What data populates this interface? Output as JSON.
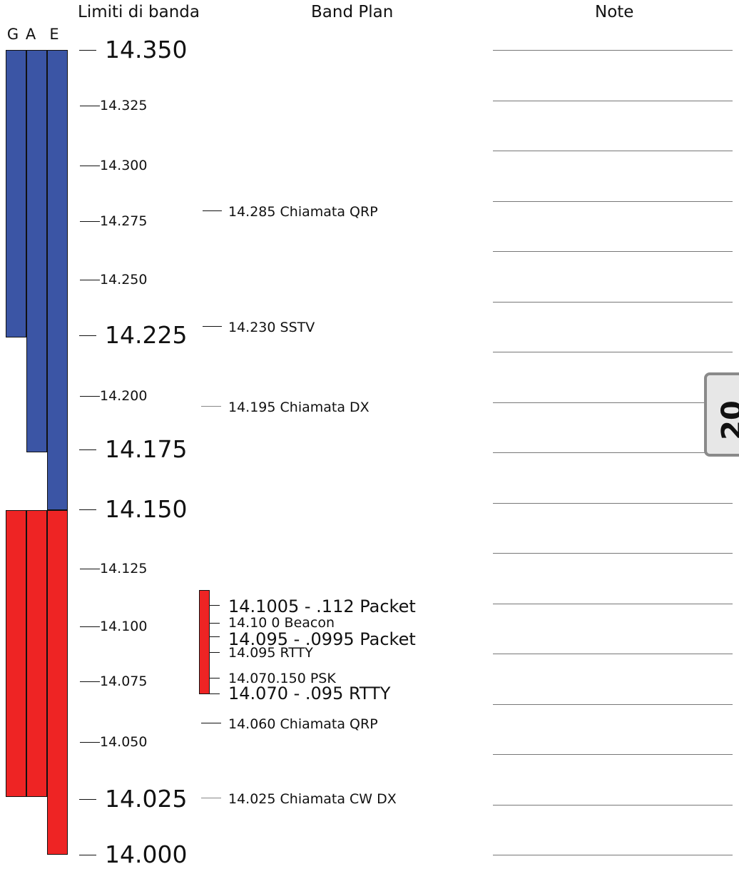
{
  "headers": {
    "limits": "Limiti di banda",
    "bandplan": "Band Plan",
    "notes": "Note"
  },
  "classes": [
    "G",
    "A",
    "E"
  ],
  "colors": {
    "phone": "#3b55a5",
    "cw_data": "#ee2424"
  },
  "band_tab": "20",
  "ticks": [
    {
      "label": "14.350",
      "size": "major"
    },
    {
      "label": "14.325",
      "size": "minor"
    },
    {
      "label": "14.300",
      "size": "minor"
    },
    {
      "label": "14.275",
      "size": "minor"
    },
    {
      "label": "14.250",
      "size": "minor"
    },
    {
      "label": "14.225",
      "size": "major"
    },
    {
      "label": "14.200",
      "size": "minor"
    },
    {
      "label": "14.175",
      "size": "major"
    },
    {
      "label": "14.150",
      "size": "major"
    },
    {
      "label": "14.125",
      "size": "minor"
    },
    {
      "label": "14.100",
      "size": "minor"
    },
    {
      "label": "14.075",
      "size": "minor"
    },
    {
      "label": "14.050",
      "size": "minor"
    },
    {
      "label": "14.025",
      "size": "major"
    },
    {
      "label": "14.000",
      "size": "major"
    }
  ],
  "bandplan": [
    {
      "label": "14.285  Chiamata QRP"
    },
    {
      "label": "14.230  SSTV"
    },
    {
      "label": "14.195  Chiamata DX"
    },
    {
      "label": "14.1005 - .112  Packet"
    },
    {
      "label": "14.10 0   Beacon"
    },
    {
      "label": "14.095 - .0995  Packet"
    },
    {
      "label": "14.095  RTTY"
    },
    {
      "label": "14.070.150  PSK"
    },
    {
      "label": "14.070 - .095  RTTY"
    },
    {
      "label": "14.060  Chiamata QRP"
    },
    {
      "label": "14.025  Chiamata CW DX"
    }
  ],
  "privileges": [
    {
      "class": "G",
      "mode": "phone",
      "from": 14.225,
      "to": 14.35
    },
    {
      "class": "A",
      "mode": "phone",
      "from": 14.175,
      "to": 14.35
    },
    {
      "class": "E",
      "mode": "phone",
      "from": 14.15,
      "to": 14.35
    },
    {
      "class": "G",
      "mode": "cw_data",
      "from": 14.025,
      "to": 14.15
    },
    {
      "class": "A",
      "mode": "cw_data",
      "from": 14.025,
      "to": 14.15
    },
    {
      "class": "E",
      "mode": "cw_data",
      "from": 14.0,
      "to": 14.15
    }
  ],
  "data_segment": {
    "from": 14.07,
    "to": 14.112
  }
}
